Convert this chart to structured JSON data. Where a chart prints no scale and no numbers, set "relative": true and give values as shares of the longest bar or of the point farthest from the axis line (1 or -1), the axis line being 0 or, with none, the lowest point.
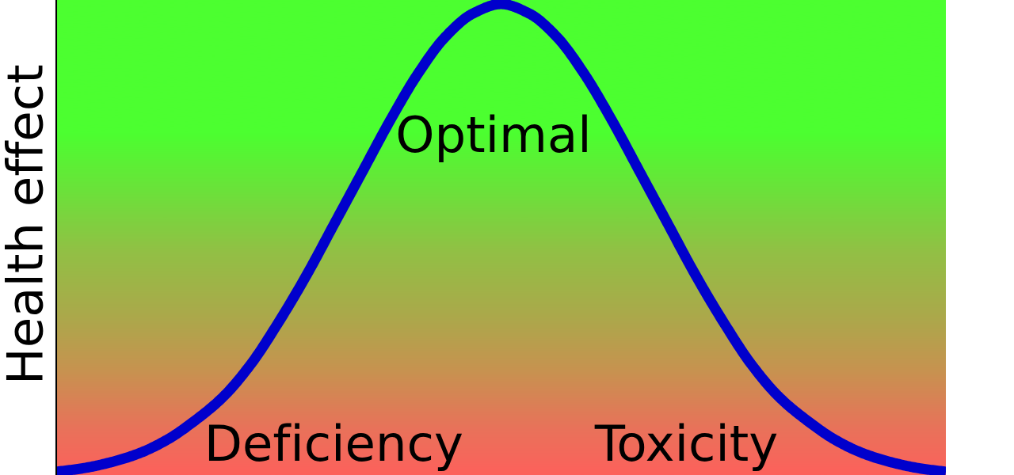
{
  "chart_data": {
    "type": "line",
    "relative": true,
    "ylabel": "Health effect",
    "annotations": [
      "Optimal",
      "Deficiency",
      "Toxicity"
    ],
    "categories": [
      null,
      null,
      null,
      null,
      null,
      null,
      null,
      null,
      null,
      null,
      null,
      null,
      null,
      null,
      null,
      null,
      null,
      null,
      null,
      null,
      null,
      null,
      null,
      null,
      null,
      null,
      null,
      null,
      null,
      null,
      null,
      null,
      null
    ],
    "series": [
      {
        "color": "#0000cc",
        "values": [
          0.0,
          0.008,
          0.021,
          0.04,
          0.069,
          0.11,
          0.16,
          0.23,
          0.32,
          0.42,
          0.53,
          0.64,
          0.75,
          0.85,
          0.93,
          0.98,
          1.0,
          0.98,
          0.93,
          0.85,
          0.75,
          0.64,
          0.53,
          0.42,
          0.32,
          0.23,
          0.16,
          0.11,
          0.069,
          0.04,
          0.021,
          0.008,
          0.0
        ]
      }
    ],
    "line_style": "solid"
  }
}
